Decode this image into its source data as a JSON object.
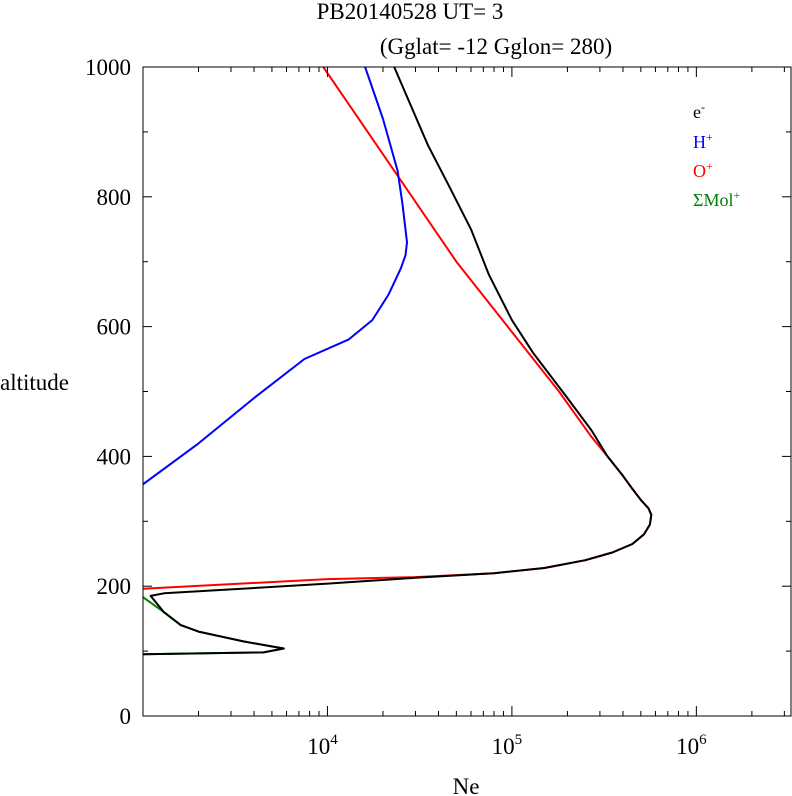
{
  "chart_data": {
    "type": "line",
    "title": "PB20140528   UT=  3",
    "subtitle": "(Gglat= -12   Gglon=  280)",
    "xlabel": "Ne",
    "ylabel": "altitude",
    "x_scale": "log",
    "xlim": [
      1000,
      3300000
    ],
    "ylim": [
      0,
      1000
    ],
    "x_ticks": [
      {
        "value": 10000,
        "base": "10",
        "exp": "4"
      },
      {
        "value": 100000,
        "base": "10",
        "exp": "5"
      },
      {
        "value": 1000000,
        "base": "10",
        "exp": "6"
      }
    ],
    "y_ticks": [
      0,
      200,
      400,
      600,
      800,
      1000
    ],
    "legend_position": "top-right",
    "legend": [
      {
        "base": "e",
        "sup": "-",
        "color": "#000000"
      },
      {
        "base": "H",
        "sup": "+",
        "color": "#0000ff"
      },
      {
        "base": "O",
        "sup": "+",
        "color": "#ff0000"
      },
      {
        "base": "ΣMol",
        "sup": "+",
        "color": "#008000"
      }
    ],
    "series": [
      {
        "color": "#ff0000",
        "points": [
          [
            1000,
            196
          ],
          [
            10000,
            211
          ],
          [
            30000,
            214
          ],
          [
            80000,
            220
          ],
          [
            150000,
            228
          ],
          [
            250000,
            240
          ],
          [
            350000,
            252
          ],
          [
            450000,
            265
          ],
          [
            520000,
            280
          ],
          [
            560000,
            295
          ],
          [
            570000,
            310
          ],
          [
            550000,
            320
          ],
          [
            500000,
            333
          ],
          [
            450000,
            350
          ],
          [
            400000,
            370
          ],
          [
            330000,
            400
          ],
          [
            270000,
            430
          ],
          [
            180000,
            500
          ],
          [
            50000,
            700
          ],
          [
            9500,
            1000
          ]
        ]
      },
      {
        "color": "#0000ff",
        "points": [
          [
            1000,
            357
          ],
          [
            2000,
            420
          ],
          [
            4000,
            490
          ],
          [
            7500,
            550
          ],
          [
            13000,
            580
          ],
          [
            17500,
            610
          ],
          [
            21500,
            650
          ],
          [
            25000,
            690
          ],
          [
            26500,
            710
          ],
          [
            27000,
            730
          ],
          [
            25500,
            790
          ],
          [
            24000,
            840
          ],
          [
            20000,
            920
          ],
          [
            16000,
            1000
          ]
        ]
      },
      {
        "color": "#008000",
        "points": [
          [
            1000,
            183
          ],
          [
            1300,
            160
          ],
          [
            1600,
            140
          ],
          [
            2000,
            130
          ],
          [
            3500,
            115
          ],
          [
            4800,
            108
          ],
          [
            5800,
            104
          ],
          [
            4500,
            98
          ],
          [
            1000,
            95
          ]
        ]
      },
      {
        "color": "#000000",
        "points": [
          [
            1000,
            95
          ],
          [
            4500,
            98
          ],
          [
            5800,
            104
          ],
          [
            4800,
            108
          ],
          [
            3500,
            115
          ],
          [
            2000,
            130
          ],
          [
            1600,
            140
          ],
          [
            1300,
            160
          ],
          [
            1100,
            185
          ],
          [
            1300,
            189
          ],
          [
            3000,
            195
          ],
          [
            10000,
            204
          ],
          [
            30000,
            213
          ],
          [
            80000,
            220
          ],
          [
            150000,
            228
          ],
          [
            250000,
            240
          ],
          [
            350000,
            252
          ],
          [
            450000,
            265
          ],
          [
            520000,
            280
          ],
          [
            560000,
            295
          ],
          [
            570000,
            310
          ],
          [
            550000,
            320
          ],
          [
            500000,
            333
          ],
          [
            450000,
            350
          ],
          [
            400000,
            370
          ],
          [
            330000,
            400
          ],
          [
            270000,
            440
          ],
          [
            200000,
            490
          ],
          [
            130000,
            560
          ],
          [
            100000,
            610
          ],
          [
            75000,
            680
          ],
          [
            60000,
            750
          ],
          [
            45000,
            820
          ],
          [
            35000,
            880
          ],
          [
            23000,
            1000
          ]
        ]
      }
    ]
  }
}
